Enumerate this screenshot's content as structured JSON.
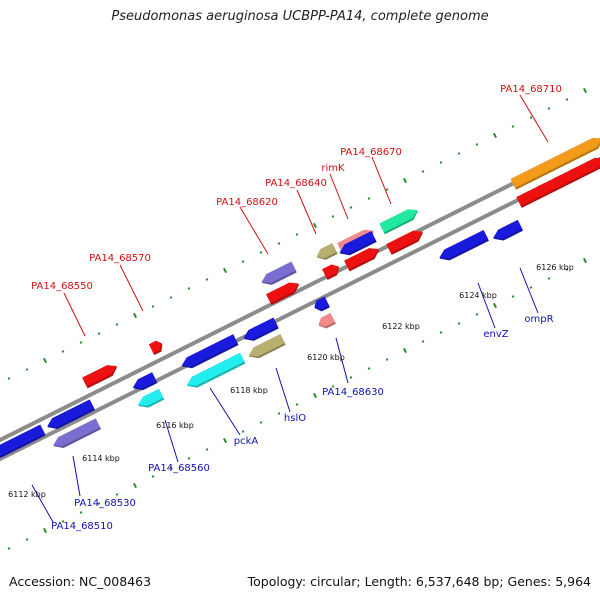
{
  "title": "Pseudomonas aeruginosa UCBPP-PA14, complete genome",
  "accession": "Accession: NC_008463",
  "topology": "Topology: circular; Length: 6,537,648 bp; Genes: 5,964",
  "colors": {
    "backbone": "#8c8c8c",
    "dots": "#2a8a2a",
    "forward_label": "#cc1111",
    "reverse_label": "#1111aa",
    "red": "#ee1111",
    "blue": "#1a1adc",
    "cyan": "#22eeee",
    "olive": "#b8b070",
    "lavender": "#7a6fd0",
    "pink": "#f08a8a",
    "teal": "#22e8a0",
    "orange": "#f39a1a"
  },
  "scale_ticks": [
    "6112 kbp",
    "6114 kbp",
    "6116 kbp",
    "6118 kbp",
    "6120 kbp",
    "6122 kbp",
    "6124 kbp",
    "6126 kbp"
  ],
  "gene_labels_forward": [
    "PA14_68550",
    "PA14_68570",
    "PA14_68620",
    "PA14_68640",
    "rimK",
    "PA14_68670",
    "PA14_68710"
  ],
  "gene_labels_reverse": [
    "PA14_68510",
    "PA14_68530",
    "PA14_68560",
    "pckA",
    "hslO",
    "PA14_68630",
    "envZ",
    "ompR"
  ]
}
